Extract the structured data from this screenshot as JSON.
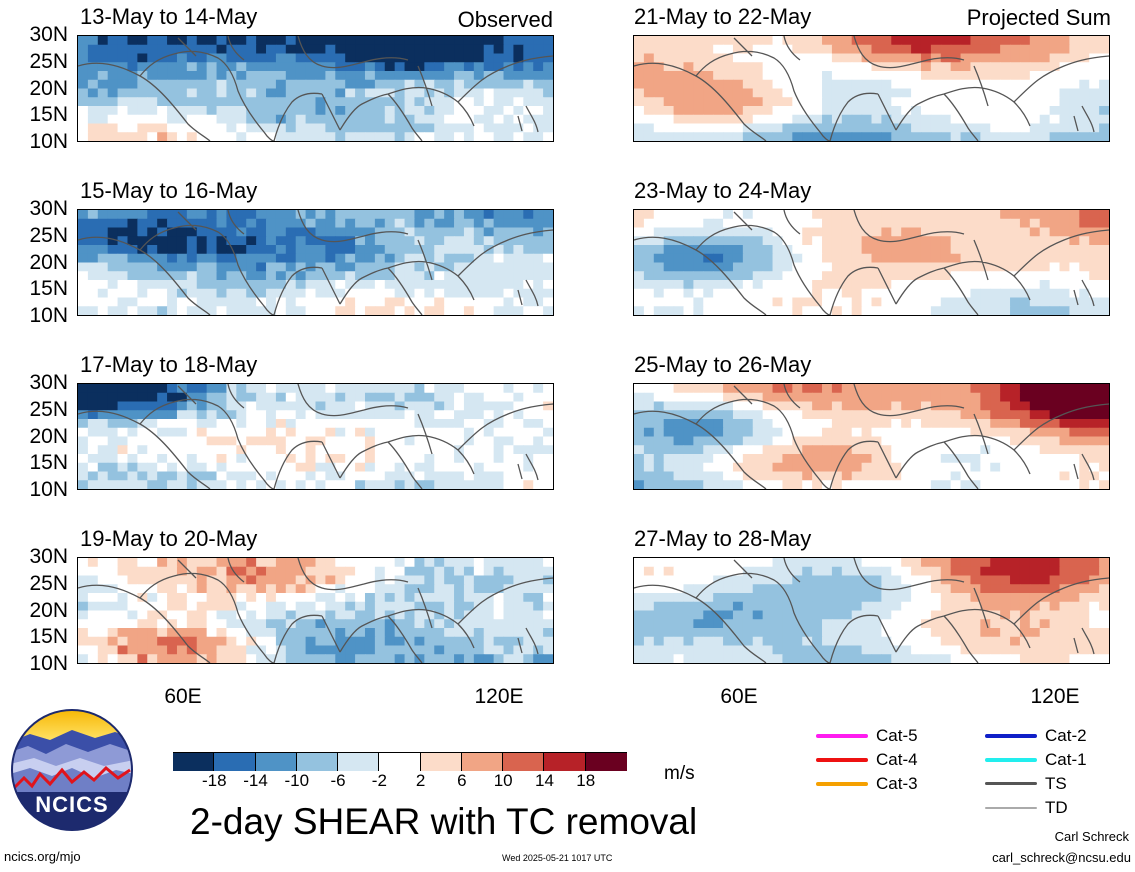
{
  "panels": [
    {
      "title": "13-May to 14-May",
      "tag": "Observed"
    },
    {
      "title": "21-May to 22-May",
      "tag": "Projected Sum"
    },
    {
      "title": "15-May to 16-May",
      "tag": ""
    },
    {
      "title": "23-May to 24-May",
      "tag": ""
    },
    {
      "title": "17-May to 18-May",
      "tag": ""
    },
    {
      "title": "25-May to 26-May",
      "tag": ""
    },
    {
      "title": "19-May to 20-May",
      "tag": ""
    },
    {
      "title": "27-May to 28-May",
      "tag": ""
    }
  ],
  "lat_labels": [
    "30N",
    "25N",
    "20N",
    "15N",
    "10N"
  ],
  "lon_labels": [
    "60E",
    "120E"
  ],
  "colorbar": {
    "colors": [
      "#0b2f5e",
      "#2a6db3",
      "#4f93c6",
      "#94c2df",
      "#d5e7f2",
      "#ffffff",
      "#fcdcc9",
      "#f1a585",
      "#d9644f",
      "#b72228",
      "#6a0020"
    ],
    "labels": [
      "-18",
      "-14",
      "-10",
      "-6",
      "-2",
      "2",
      "6",
      "10",
      "14",
      "18"
    ],
    "units": "m/s"
  },
  "title": "2-day SHEAR with TC removal",
  "legend": [
    {
      "label": "Cat-5",
      "color": "#ff1cf0"
    },
    {
      "label": "Cat-2",
      "color": "#1020c8"
    },
    {
      "label": "Cat-4",
      "color": "#ee1111"
    },
    {
      "label": "Cat-1",
      "color": "#22eeee"
    },
    {
      "label": "Cat-3",
      "color": "#f5a000"
    },
    {
      "label": "TS",
      "color": "#555555"
    },
    {
      "label": "TD",
      "color": "#aaaaaa"
    }
  ],
  "logo_text": "NCICS",
  "footer": {
    "left": "ncics.org/mjo",
    "center": "Wed 2025-05-21 1017 UTC",
    "right_name": "Carl Schreck",
    "right_email": "carl_schreck@ncsu.edu"
  }
}
